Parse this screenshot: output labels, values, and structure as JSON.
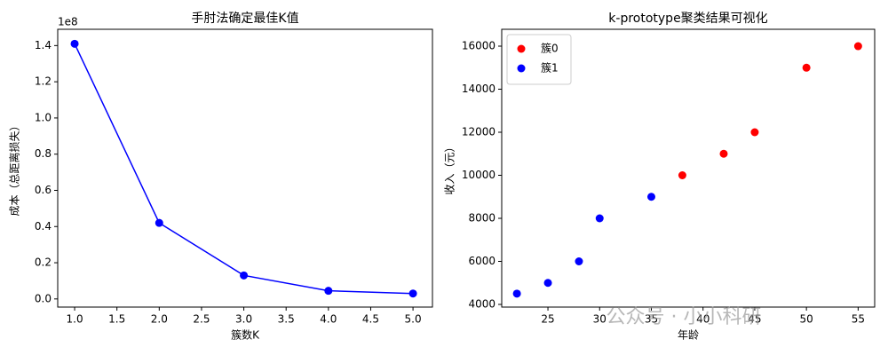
{
  "chart_data": [
    {
      "type": "line",
      "title": "手肘法确定最佳K值",
      "xlabel": "簇数K",
      "ylabel": "成本（总距离损失）",
      "offset_text": "1e8",
      "x": [
        1,
        2,
        3,
        4,
        5
      ],
      "series": [
        {
          "name": "成本",
          "color": "#0000ff",
          "values": [
            1.41,
            0.42,
            0.13,
            0.045,
            0.03
          ]
        }
      ],
      "xlim": [
        0.8,
        5.23
      ],
      "ylim": [
        -0.045,
        1.49
      ],
      "xticks": [
        {
          "value": 1,
          "label": "1.0"
        },
        {
          "value": 1.5,
          "label": "1.5"
        },
        {
          "value": 2,
          "label": "2.0"
        },
        {
          "value": 2.5,
          "label": "2.5"
        },
        {
          "value": 3,
          "label": "3.0"
        },
        {
          "value": 3.5,
          "label": "3.5"
        },
        {
          "value": 4,
          "label": "4.0"
        },
        {
          "value": 4.5,
          "label": "4.5"
        },
        {
          "value": 5,
          "label": "5.0"
        }
      ],
      "yticks": [
        {
          "value": 0,
          "label": "0.0"
        },
        0.2,
        0.4,
        0.6,
        0.8,
        {
          "value": 1,
          "label": "1.0"
        },
        1.2,
        1.4
      ]
    },
    {
      "type": "scatter",
      "title": "k-prototype聚类结果可视化",
      "xlabel": "年龄",
      "ylabel": "收入（元）",
      "legend": "upper left",
      "series": [
        {
          "name": "簇0",
          "color": "#ff0000",
          "x": [
            38,
            42,
            45,
            50,
            55
          ],
          "values": [
            10000,
            11000,
            12000,
            15000,
            16000
          ]
        },
        {
          "name": "簇1",
          "color": "#0000ff",
          "x": [
            22,
            25,
            28,
            30,
            35
          ],
          "values": [
            4500,
            5000,
            6000,
            8000,
            9000
          ]
        }
      ],
      "xlim": [
        20.53,
        56.6
      ],
      "ylim": [
        3876,
        16784
      ],
      "xticks": [
        25,
        30,
        35,
        40,
        45,
        50,
        55
      ],
      "yticks": [
        4000,
        6000,
        8000,
        10000,
        12000,
        14000,
        16000
      ]
    }
  ],
  "watermark": "公众号 · 小小科研"
}
